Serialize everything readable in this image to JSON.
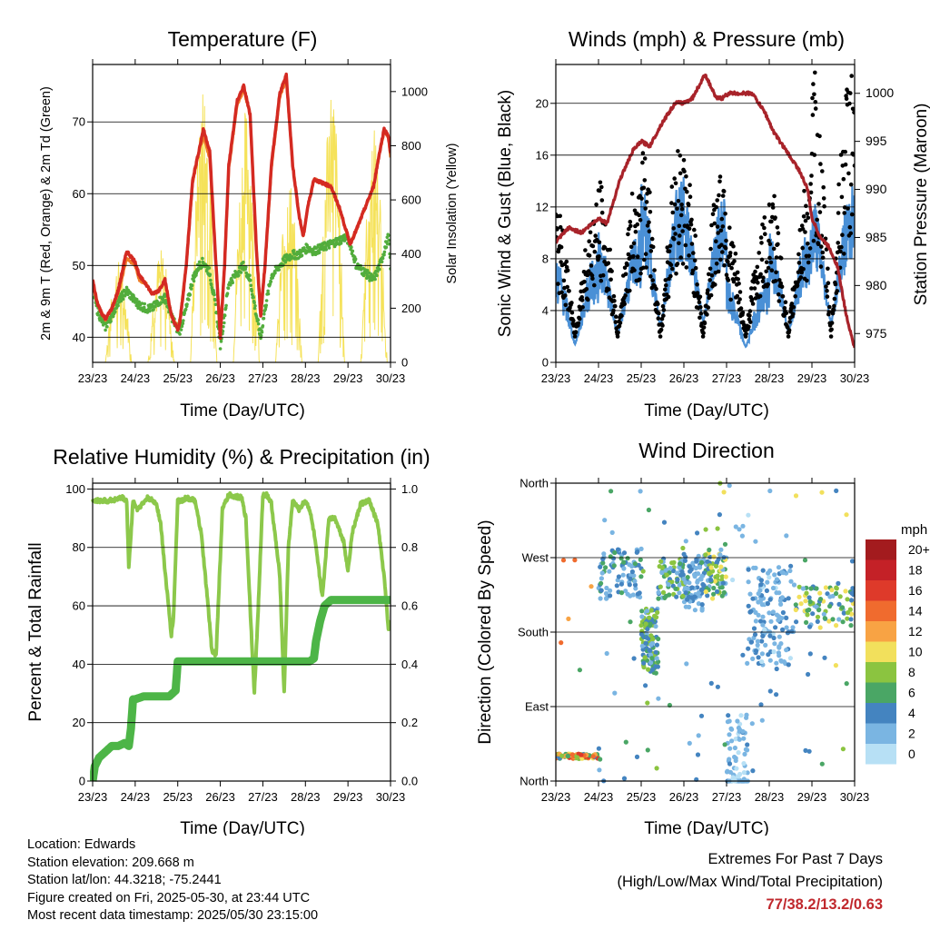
{
  "panels": {
    "temperature": {
      "title": "Temperature (F)",
      "xlabel": "Time (Day/UTC)",
      "ylabel_left": "2m & 9m T (Red, Orange) & 2m Td (Green)",
      "ylabel_right": "Solar Insolation (Yellow)"
    },
    "winds": {
      "title": "Winds (mph) & Pressure (mb)",
      "xlabel": "Time (Day/UTC)",
      "ylabel_left": "Sonic Wind & Gust (Blue, Black)",
      "ylabel_right": "Station Pressure (Maroon)"
    },
    "humidity": {
      "title": "Relative Humidity (%) & Precipitation (in)",
      "xlabel": "Time (Day/UTC)",
      "ylabel_left": "Percent & Total Rainfall"
    },
    "direction": {
      "title": "Wind Direction",
      "xlabel": "Time (Day/UTC)",
      "ylabel_left": "Direction (Colored By Speed)",
      "legend_title": "mph"
    }
  },
  "chart_data": [
    {
      "type": "line",
      "title": "Temperature (F)",
      "xlabel": "Time (Day/UTC)",
      "ylabel": "2m & 9m T (Red, Orange) & 2m Td (Green)",
      "y2label": "Solar Insolation (Yellow)",
      "x_ticks": [
        "23/23",
        "24/23",
        "25/23",
        "26/23",
        "27/23",
        "28/23",
        "29/23",
        "30/23"
      ],
      "y_ticks": [
        40,
        50,
        60,
        70
      ],
      "y2_ticks": [
        0,
        200,
        400,
        600,
        800,
        1000
      ],
      "ylim": [
        36.5,
        78
      ],
      "y2lim": [
        0,
        1100
      ],
      "grid": true,
      "x": [
        0,
        0.1,
        0.2,
        0.3,
        0.45,
        0.6,
        0.8,
        1,
        1.1,
        1.25,
        1.4,
        1.55,
        1.7,
        1.85,
        2,
        2.05,
        2.2,
        2.35,
        2.5,
        2.6,
        2.75,
        2.9,
        3,
        3.1,
        3.2,
        3.4,
        3.55,
        3.7,
        3.85,
        3.95,
        4.05,
        4.2,
        4.4,
        4.55,
        4.7,
        4.85,
        4.95,
        5.05,
        5.2,
        5.4,
        5.6,
        5.8,
        5.95,
        6.05,
        6.2,
        6.4,
        6.6,
        6.75,
        6.85,
        6.95,
        7
      ],
      "series": [
        {
          "name": "2m T",
          "color": "#d42a22",
          "values": [
            48,
            45,
            43.5,
            42.5,
            44,
            46.5,
            52,
            50.5,
            48.5,
            47.5,
            46,
            46.5,
            48,
            43,
            41,
            42,
            50,
            62,
            66,
            69,
            66,
            50,
            40,
            50,
            64,
            73,
            75,
            71,
            52,
            43,
            50,
            64,
            74,
            76.5,
            64,
            57,
            54,
            58,
            62,
            61.5,
            61,
            58,
            55,
            53,
            55,
            58,
            61,
            66,
            69,
            68,
            65.5
          ]
        },
        {
          "name": "9m T",
          "color": "#f07d28",
          "values": [
            47.5,
            45,
            43.5,
            42.5,
            44,
            46,
            51,
            50,
            48,
            47.5,
            46,
            46.5,
            48,
            43,
            41.5,
            42.5,
            50,
            61.5,
            66,
            68,
            65,
            50,
            40.5,
            50,
            63.5,
            72.5,
            74.5,
            71,
            52,
            43.5,
            50,
            63.5,
            73.5,
            76,
            64,
            57,
            54,
            58,
            62,
            61.5,
            61,
            58,
            55,
            53,
            55,
            58,
            61,
            66,
            68.5,
            68,
            65
          ]
        },
        {
          "name": "2m Td",
          "color": "#52ad3c",
          "values": [
            47,
            44,
            42.5,
            41.5,
            43,
            45,
            46.5,
            45,
            44.5,
            44,
            44,
            45,
            45.5,
            43,
            41,
            41,
            44,
            48,
            50,
            50.5,
            49,
            44,
            39,
            43,
            47.5,
            49,
            50,
            48,
            43,
            40,
            44,
            48.5,
            50,
            51,
            51.5,
            51.5,
            52,
            52.5,
            52,
            52.5,
            53,
            53.5,
            54,
            53,
            50,
            49,
            48,
            50,
            52,
            54,
            50
          ]
        }
      ],
      "insolation": {
        "name": "Solar Insolation",
        "color": "#f5e25a",
        "days": [
          0,
          1,
          2,
          3,
          4,
          5,
          6
        ],
        "peaks": [
          380,
          420,
          1060,
          950,
          700,
          1050,
          880
        ]
      }
    },
    {
      "type": "line",
      "title": "Winds (mph) & Pressure (mb)",
      "xlabel": "Time (Day/UTC)",
      "ylabel": "Sonic Wind & Gust (Blue, Black)",
      "y2label": "Station Pressure (Maroon)",
      "x_ticks": [
        "23/23",
        "24/23",
        "25/23",
        "26/23",
        "27/23",
        "28/23",
        "29/23",
        "30/23"
      ],
      "y_ticks": [
        0,
        4,
        8,
        12,
        16,
        20
      ],
      "y2_ticks": [
        975,
        980,
        985,
        990,
        995,
        1000
      ],
      "ylim": [
        0,
        23
      ],
      "y2lim": [
        972,
        1003
      ],
      "grid": true,
      "pressure": {
        "name": "Station Pressure",
        "color": "#a8232a",
        "x": [
          0,
          0.3,
          0.6,
          1,
          1.2,
          1.5,
          1.8,
          2,
          2.2,
          2.5,
          2.8,
          3,
          3.2,
          3.5,
          3.75,
          3.9,
          4.05,
          4.3,
          4.6,
          4.9,
          5.1,
          5.4,
          5.7,
          5.9,
          6,
          6.2,
          6.4,
          6.6,
          6.8,
          7
        ],
        "values": [
          984.5,
          986,
          985.5,
          987,
          986.5,
          991,
          994,
          995,
          994.5,
          997,
          999,
          999,
          999.5,
          1002,
          999.5,
          999.5,
          1000,
          1000,
          1000,
          998,
          996,
          994,
          992,
          990,
          987,
          985,
          984,
          982,
          977,
          973.5
        ]
      },
      "wind": {
        "name": "Sonic Wind",
        "color": "#4a90d6",
        "day_means": [
          3.5,
          5.5,
          7,
          8,
          3,
          6,
          7.5
        ],
        "day_max": [
          8,
          9,
          13,
          11,
          6,
          9,
          12
        ]
      },
      "gust": {
        "name": "Gust",
        "color": "#000000",
        "day_max": [
          10,
          12,
          15,
          14,
          9,
          12,
          21
        ]
      }
    },
    {
      "type": "line",
      "title": "Relative Humidity (%) & Precipitation (in)",
      "xlabel": "Time (Day/UTC)",
      "ylabel": "Percent & Total Rainfall",
      "x_ticks": [
        "23/23",
        "24/23",
        "25/23",
        "26/23",
        "27/23",
        "28/23",
        "29/23",
        "30/23"
      ],
      "y_ticks": [
        0,
        20,
        40,
        60,
        80,
        100
      ],
      "y2_ticks": [
        "0.0",
        "0.2",
        "0.4",
        "0.6",
        "0.8",
        "1.0"
      ],
      "ylim": [
        0,
        102
      ],
      "y2lim": [
        0,
        1.02
      ],
      "grid": true,
      "rh": {
        "name": "Relative Humidity",
        "color": "#8cc84b",
        "x": [
          0,
          0.4,
          0.7,
          0.8,
          0.85,
          0.95,
          1.05,
          1.3,
          1.5,
          1.6,
          1.7,
          1.85,
          1.9,
          2,
          2.1,
          2.2,
          2.4,
          2.55,
          2.7,
          2.8,
          2.9,
          3.05,
          3.2,
          3.5,
          3.6,
          3.7,
          3.8,
          3.9,
          4,
          4.1,
          4.2,
          4.4,
          4.5,
          4.6,
          4.7,
          4.85,
          5,
          5.1,
          5.2,
          5.4,
          5.55,
          5.7,
          5.9,
          6,
          6.1,
          6.3,
          6.5,
          6.7,
          6.85,
          6.95,
          7
        ],
        "values": [
          96,
          96,
          97,
          96,
          73,
          96,
          93,
          97,
          95,
          88,
          72,
          50,
          56,
          96,
          96,
          97,
          96,
          85,
          62,
          45,
          43,
          93,
          98,
          97,
          90,
          60,
          30,
          62,
          98,
          98,
          95,
          70,
          30,
          80,
          96,
          93,
          96,
          93,
          85,
          63,
          90,
          90,
          82,
          72,
          85,
          95,
          96,
          88,
          70,
          52,
          55
        ]
      },
      "precip": {
        "name": "Total Rainfall",
        "color": "#4db547",
        "x": [
          0,
          0.05,
          0.15,
          0.3,
          0.45,
          0.6,
          0.75,
          0.85,
          0.9,
          0.95,
          1,
          1.2,
          1.5,
          1.8,
          1.95,
          2,
          2.05,
          2.3,
          2.6,
          3,
          3.4,
          3.8,
          4.2,
          4.6,
          4.9,
          5.1,
          5.2,
          5.25,
          5.35,
          5.45,
          5.6,
          5.8,
          6,
          6.3,
          6.6,
          6.9,
          7
        ],
        "values": [
          0,
          0.05,
          0.08,
          0.1,
          0.12,
          0.12,
          0.13,
          0.12,
          0.18,
          0.28,
          0.28,
          0.29,
          0.29,
          0.29,
          0.31,
          0.41,
          0.41,
          0.41,
          0.41,
          0.41,
          0.41,
          0.41,
          0.41,
          0.41,
          0.41,
          0.41,
          0.42,
          0.48,
          0.55,
          0.6,
          0.62,
          0.62,
          0.62,
          0.62,
          0.62,
          0.62,
          0.62
        ]
      }
    },
    {
      "type": "scatter",
      "title": "Wind Direction",
      "xlabel": "Time (Day/UTC)",
      "ylabel": "Direction (Colored By Speed)",
      "x_ticks": [
        "23/23",
        "24/23",
        "25/23",
        "26/23",
        "27/23",
        "28/23",
        "29/23",
        "30/23"
      ],
      "y_ticks": [
        "North",
        "East",
        "South",
        "West",
        "North"
      ],
      "ylim": [
        0,
        360
      ],
      "grid": true,
      "colorbar": {
        "title": "mph",
        "labels": [
          "20+",
          "18",
          "16",
          "14",
          "12",
          "10",
          "8",
          "6",
          "4",
          "2",
          "0"
        ],
        "colors": [
          "#a31b1e",
          "#c42127",
          "#de3a2a",
          "#f06b2e",
          "#f8a344",
          "#f2e05c",
          "#8bc440",
          "#4aa665",
          "#4484c0",
          "#7ab5e2",
          "#b7e0f5"
        ]
      }
    }
  ],
  "footer": {
    "location": "Location: Edwards",
    "elevation": "Station elevation: 209.668 m",
    "latlon": "Station lat/lon: 44.3218; -75.2441",
    "created": "Figure created on Fri, 2025-05-30, at 23:44 UTC",
    "recent": "Most recent data timestamp: 2025/05/30 23:15:00"
  },
  "extremes": {
    "title": "Extremes For Past 7 Days",
    "subtitle": "(High/Low/Max Wind/Total Precipitation)",
    "value": "77/38.2/13.2/0.63"
  }
}
